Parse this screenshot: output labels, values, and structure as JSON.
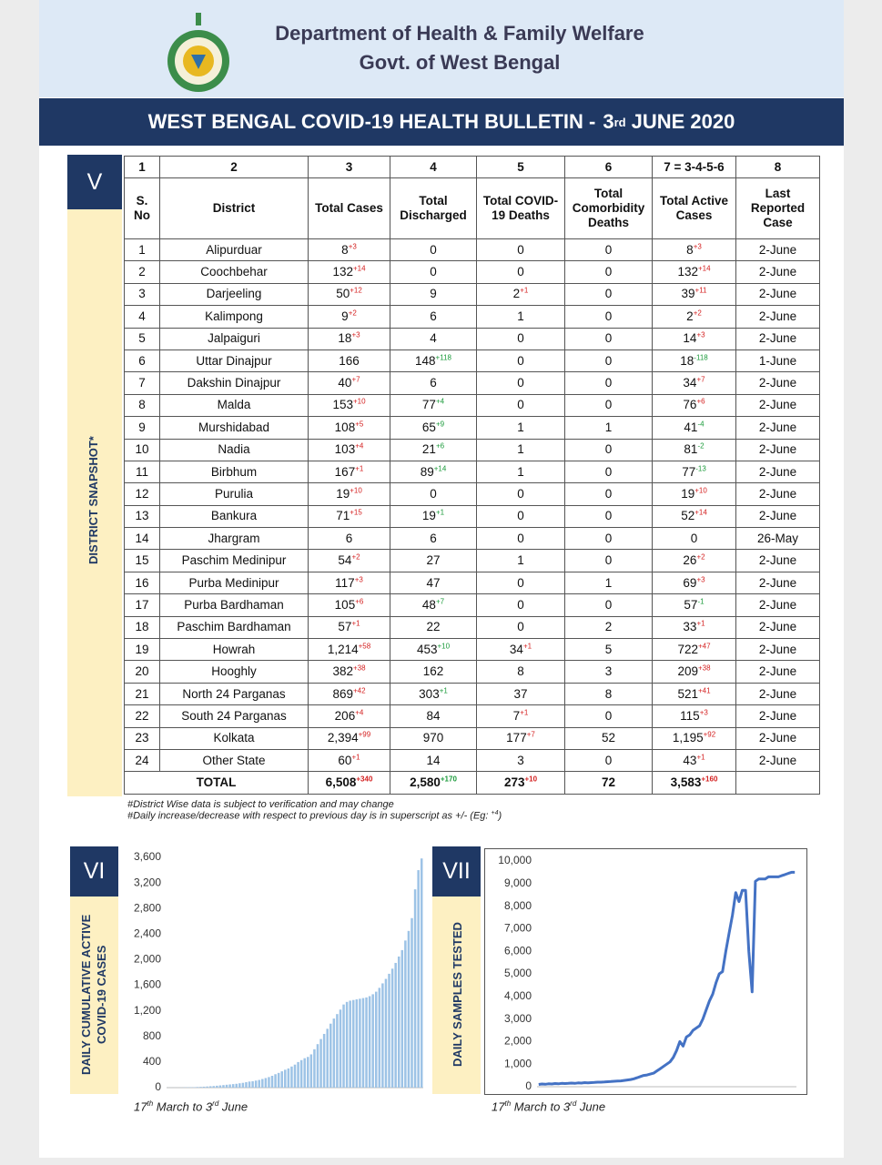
{
  "header": {
    "department": "Department of Health & Family Welfare",
    "government": "Govt. of West Bengal"
  },
  "banner": {
    "title": "WEST BENGAL COVID-19 HEALTH BULLETIN -",
    "day": "3",
    "day_suffix": "rd",
    "month_year": "JUNE 2020"
  },
  "district_snapshot": {
    "section": "V",
    "label": "DISTRICT SNAPSHOT*",
    "table": {
      "column_numbers": [
        "1",
        "2",
        "3",
        "4",
        "5",
        "6",
        "7 = 3-4-5-6",
        "8"
      ],
      "columns": [
        "S. No",
        "District",
        "Total Cases",
        "Total Discharged",
        "Total COVID-19 Deaths",
        "Total Comorbidity Deaths",
        "Total Active Cases",
        "Last Reported Case"
      ],
      "rows": [
        [
          "1",
          "Alipurduar",
          {
            "text": "8",
            "sup": "+3"
          },
          "0",
          "0",
          "0",
          {
            "text": "8",
            "sup": "+3"
          },
          "2-June"
        ],
        [
          "2",
          "Coochbehar",
          {
            "text": "132",
            "sup": "+14"
          },
          "0",
          "0",
          "0",
          {
            "text": "132",
            "sup": "+14"
          },
          "2-June"
        ],
        [
          "3",
          "Darjeeling",
          {
            "text": "50",
            "sup": "+12"
          },
          "9",
          {
            "text": "2",
            "sup": "+1"
          },
          "0",
          {
            "text": "39",
            "sup": "+11"
          },
          "2-June"
        ],
        [
          "4",
          "Kalimpong",
          {
            "text": "9",
            "sup": "+2"
          },
          "6",
          "1",
          "0",
          {
            "text": "2",
            "sup": "+2"
          },
          "2-June"
        ],
        [
          "5",
          "Jalpaiguri",
          {
            "text": "18",
            "sup": "+3"
          },
          "4",
          "0",
          "0",
          {
            "text": "14",
            "sup": "+3"
          },
          "2-June"
        ],
        [
          "6",
          "Uttar Dinajpur",
          "166",
          {
            "text": "148",
            "sup": "+118"
          },
          "0",
          "0",
          {
            "text": "18",
            "sup": "-118"
          },
          "1-June"
        ],
        [
          "7",
          "Dakshin Dinajpur",
          {
            "text": "40",
            "sup": "+7"
          },
          "6",
          "0",
          "0",
          {
            "text": "34",
            "sup": "+7"
          },
          "2-June"
        ],
        [
          "8",
          "Malda",
          {
            "text": "153",
            "sup": "+10"
          },
          {
            "text": "77",
            "sup": "+4"
          },
          "0",
          "0",
          {
            "text": "76",
            "sup": "+6"
          },
          "2-June"
        ],
        [
          "9",
          "Murshidabad",
          {
            "text": "108",
            "sup": "+5"
          },
          {
            "text": "65",
            "sup": "+9"
          },
          "1",
          "1",
          {
            "text": "41",
            "sup": "-4"
          },
          "2-June"
        ],
        [
          "10",
          "Nadia",
          {
            "text": "103",
            "sup": "+4"
          },
          {
            "text": "21",
            "sup": "+6"
          },
          "1",
          "0",
          {
            "text": "81",
            "sup": "-2"
          },
          "2-June"
        ],
        [
          "11",
          "Birbhum",
          {
            "text": "167",
            "sup": "+1"
          },
          {
            "text": "89",
            "sup": "+14"
          },
          "1",
          "0",
          {
            "text": "77",
            "sup": "-13"
          },
          "2-June"
        ],
        [
          "12",
          "Purulia",
          {
            "text": "19",
            "sup": "+10"
          },
          "0",
          "0",
          "0",
          {
            "text": "19",
            "sup": "+10"
          },
          "2-June"
        ],
        [
          "13",
          "Bankura",
          {
            "text": "71",
            "sup": "+15"
          },
          {
            "text": "19",
            "sup": "+1"
          },
          "0",
          "0",
          {
            "text": "52",
            "sup": "+14"
          },
          "2-June"
        ],
        [
          "14",
          "Jhargram",
          "6",
          "6",
          "0",
          "0",
          "0",
          "26-May"
        ],
        [
          "15",
          "Paschim Medinipur",
          {
            "text": "54",
            "sup": "+2"
          },
          "27",
          "1",
          "0",
          {
            "text": "26",
            "sup": "+2"
          },
          "2-June"
        ],
        [
          "16",
          "Purba Medinipur",
          {
            "text": "117",
            "sup": "+3"
          },
          "47",
          "0",
          "1",
          {
            "text": "69",
            "sup": "+3"
          },
          "2-June"
        ],
        [
          "17",
          "Purba Bardhaman",
          {
            "text": "105",
            "sup": "+6"
          },
          {
            "text": "48",
            "sup": "+7"
          },
          "0",
          "0",
          {
            "text": "57",
            "sup": "-1"
          },
          "2-June"
        ],
        [
          "18",
          "Paschim Bardhaman",
          {
            "text": "57",
            "sup": "+1"
          },
          "22",
          "0",
          "2",
          {
            "text": "33",
            "sup": "+1"
          },
          "2-June"
        ],
        [
          "19",
          "Howrah",
          {
            "text": "1,214",
            "sup": "+58"
          },
          {
            "text": "453",
            "sup": "+10"
          },
          {
            "text": "34",
            "sup": "+1"
          },
          "5",
          {
            "text": "722",
            "sup": "+47"
          },
          "2-June"
        ],
        [
          "20",
          "Hooghly",
          {
            "text": "382",
            "sup": "+38"
          },
          "162",
          "8",
          "3",
          {
            "text": "209",
            "sup": "+38"
          },
          "2-June"
        ],
        [
          "21",
          "North 24 Parganas",
          {
            "text": "869",
            "sup": "+42"
          },
          {
            "text": "303",
            "sup": "+1"
          },
          "37",
          "8",
          {
            "text": "521",
            "sup": "+41"
          },
          "2-June"
        ],
        [
          "22",
          "South 24 Parganas",
          {
            "text": "206",
            "sup": "+4"
          },
          "84",
          {
            "text": "7",
            "sup": "+1"
          },
          "0",
          {
            "text": "115",
            "sup": "+3"
          },
          "2-June"
        ],
        [
          "23",
          "Kolkata",
          {
            "text": "2,394",
            "sup": "+99"
          },
          "970",
          {
            "text": "177",
            "sup": "+7"
          },
          "52",
          {
            "text": "1,195",
            "sup": "+92"
          },
          "2-June"
        ],
        [
          "24",
          "Other State",
          {
            "text": "60",
            "sup": "+1"
          },
          "14",
          "3",
          "0",
          {
            "text": "43",
            "sup": "+1"
          },
          "2-June"
        ]
      ],
      "total": [
        "TOTAL",
        {
          "text": "6,508",
          "sup": "+340"
        },
        {
          "text": "2,580",
          "sup": "+170"
        },
        {
          "text": "273",
          "sup": "+10"
        },
        "72",
        {
          "text": "3,583",
          "sup": "+160"
        }
      ]
    },
    "notes": [
      {
        "text": "#District Wise data is subject to verification and may change"
      },
      {
        "text": "#Daily increase/decrease with respect to previous day is in superscript as +/- (Eg:",
        "sup": "+4",
        "tail": ")"
      }
    ]
  },
  "chart_panels": [
    {
      "section": "VI",
      "label": [
        "DAILY CUMULATIVE ACTIVE",
        "COVID-19 CASES"
      ],
      "period": [
        {
          "t": "17"
        },
        {
          "sup": "th"
        },
        {
          "t": " March to 3"
        },
        {
          "sup": "rd"
        },
        {
          "t": " June"
        }
      ]
    },
    {
      "section": "VII",
      "label": [
        "DAILY SAMPLES TESTED"
      ],
      "period": [
        {
          "t": "17"
        },
        {
          "sup": "th"
        },
        {
          "t": " March to 3"
        },
        {
          "sup": "rd"
        },
        {
          "t": " June"
        }
      ]
    }
  ],
  "chart_data": [
    {
      "type": "bar",
      "color": "#9dc3e6",
      "values": [
        1,
        1,
        1,
        1,
        2,
        4,
        5,
        6,
        7,
        10,
        12,
        15,
        18,
        22,
        25,
        30,
        35,
        40,
        45,
        50,
        55,
        60,
        68,
        75,
        85,
        95,
        100,
        110,
        120,
        135,
        150,
        165,
        185,
        210,
        230,
        255,
        280,
        300,
        330,
        360,
        400,
        430,
        460,
        480,
        520,
        600,
        680,
        760,
        840,
        920,
        1000,
        1080,
        1150,
        1220,
        1300,
        1340,
        1360,
        1370,
        1380,
        1390,
        1400,
        1410,
        1430,
        1460,
        1500,
        1560,
        1630,
        1700,
        1780,
        1860,
        1950,
        2050,
        2150,
        2300,
        2450,
        2650,
        3100,
        3400,
        3583
      ],
      "ylim": [
        0,
        3600
      ],
      "yticks": [
        0,
        400,
        800,
        {
          "value": 1200,
          "label": "1,200"
        },
        {
          "value": 1600,
          "label": "1,600"
        },
        {
          "value": 2000,
          "label": "2,000"
        },
        {
          "value": 2400,
          "label": "2,400"
        },
        {
          "value": 2800,
          "label": "2,800"
        },
        {
          "value": 3200,
          "label": "3,200"
        },
        {
          "value": 3600,
          "label": "3,600"
        }
      ]
    },
    {
      "type": "line",
      "color": "#4472c4",
      "values": [
        100,
        120,
        110,
        130,
        120,
        140,
        130,
        150,
        140,
        150,
        160,
        150,
        170,
        160,
        180,
        170,
        180,
        190,
        200,
        200,
        210,
        220,
        230,
        240,
        250,
        260,
        280,
        300,
        320,
        350,
        400,
        450,
        500,
        520,
        560,
        600,
        700,
        800,
        900,
        1000,
        1100,
        1300,
        1600,
        2000,
        1800,
        2200,
        2300,
        2500,
        2600,
        2700,
        3000,
        3400,
        3800,
        4100,
        4600,
        5000,
        5100,
        6000,
        6800,
        7600,
        8600,
        8200,
        8700,
        8700,
        6000,
        4200,
        9100,
        9200,
        9200,
        9200,
        9300,
        9300,
        9300,
        9300,
        9350,
        9400,
        9450,
        9500,
        9500
      ],
      "ylim": [
        0,
        10000
      ],
      "yticks": [
        0,
        {
          "value": 1000,
          "label": "1,000"
        },
        {
          "value": 2000,
          "label": "2,000"
        },
        {
          "value": 3000,
          "label": "3,000"
        },
        {
          "value": 4000,
          "label": "4,000"
        },
        {
          "value": 5000,
          "label": "5,000"
        },
        {
          "value": 6000,
          "label": "6,000"
        },
        {
          "value": 7000,
          "label": "7,000"
        },
        {
          "value": 8000,
          "label": "8,000"
        },
        {
          "value": 9000,
          "label": "9,000"
        },
        {
          "value": 10000,
          "label": "10,000"
        }
      ]
    }
  ]
}
